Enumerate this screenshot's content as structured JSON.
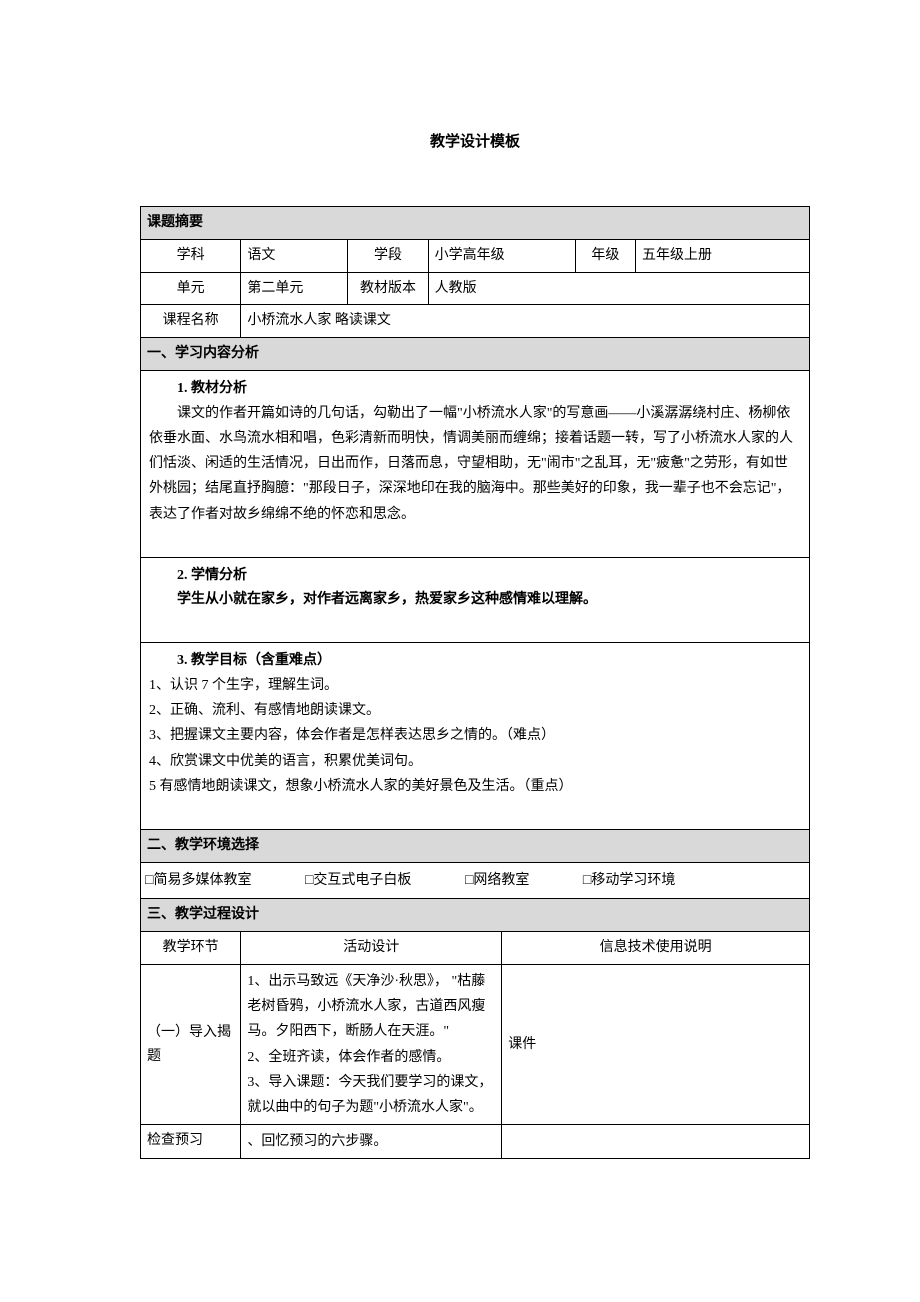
{
  "doc_title": "教学设计模板",
  "summary": {
    "header": "课题摘要",
    "rows": {
      "subject_label": "学科",
      "subject_value": "语文",
      "stage_label": "学段",
      "stage_value": "小学高年级",
      "grade_label": "年级",
      "grade_value": "五年级上册",
      "unit_label": "单元",
      "unit_value": "第二单元",
      "textbook_label": "教材版本",
      "textbook_value": "人教版",
      "course_label": "课程名称",
      "course_value": "小桥流水人家          略读课文"
    }
  },
  "section1": {
    "header": "一、学习内容分析",
    "block1_heading": "1.  教材分析",
    "block1_text": "课文的作者开篇如诗的几句话，勾勒出了一幅\"小桥流水人家\"的写意画——小溪潺潺绕村庄、杨柳依依垂水面、水鸟流水相和唱，色彩清新而明快，情调美丽而缠绵；接着话题一转，写了小桥流水人家的人们恬淡、闲适的生活情况，日出而作，日落而息，守望相助，无\"闹市\"之乱耳，无\"疲惫\"之劳形，有如世外桃园；结尾直抒胸臆：\"那段日子，深深地印在我的脑海中。那些美好的印象，我一辈子也不会忘记\"，表达了作者对故乡绵绵不绝的怀恋和思念。",
    "block2_heading": "2.   学情分析",
    "block2_text": "学生从小就在家乡，对作者远离家乡，热爱家乡这种感情难以理解。",
    "block3_heading": "3. 教学目标（含重难点）",
    "block3_items": [
      "1、认识 7 个生字，理解生词。",
      "2、正确、流利、有感情地朗读课文。",
      "3、把握课文主要内容，体会作者是怎样表达思乡之情的。（难点）",
      "4、欣赏课文中优美的语言，积累优美词句。",
      "5 有感情地朗读课文，想象小桥流水人家的美好景色及生活。（重点）"
    ]
  },
  "section2": {
    "header": "二、教学环境选择",
    "options": [
      "□简易多媒体教室",
      "□交互式电子白板",
      "□网络教室",
      "□移动学习环境"
    ]
  },
  "section3": {
    "header": "三、教学过程设计",
    "columns": {
      "col1": "教学环节",
      "col2": "活动设计",
      "col3": "信息技术使用说明"
    },
    "rows": [
      {
        "env": "（一）导入揭题",
        "activity": "1、出示马致远《天净沙·秋思》， \"枯藤老树昏鸦，小桥流水人家，古道西风瘦马。夕阳西下，断肠人在天涯。\"\n2、全班齐读，体会作者的感情。\n3、导入课题：今天我们要学习的课文，就以曲中的句子为题\"小桥流水人家\"。",
        "tech": "课件"
      },
      {
        "env": "检查预习",
        "activity": "、回忆预习的六步骤。",
        "tech": ""
      }
    ]
  },
  "colors": {
    "background": "#ffffff",
    "section_header_bg": "#d9d9d9",
    "border": "#000000",
    "text": "#000000"
  },
  "typography": {
    "base_font_size": 14,
    "title_font_size": 15,
    "font_family": "SimSun"
  }
}
